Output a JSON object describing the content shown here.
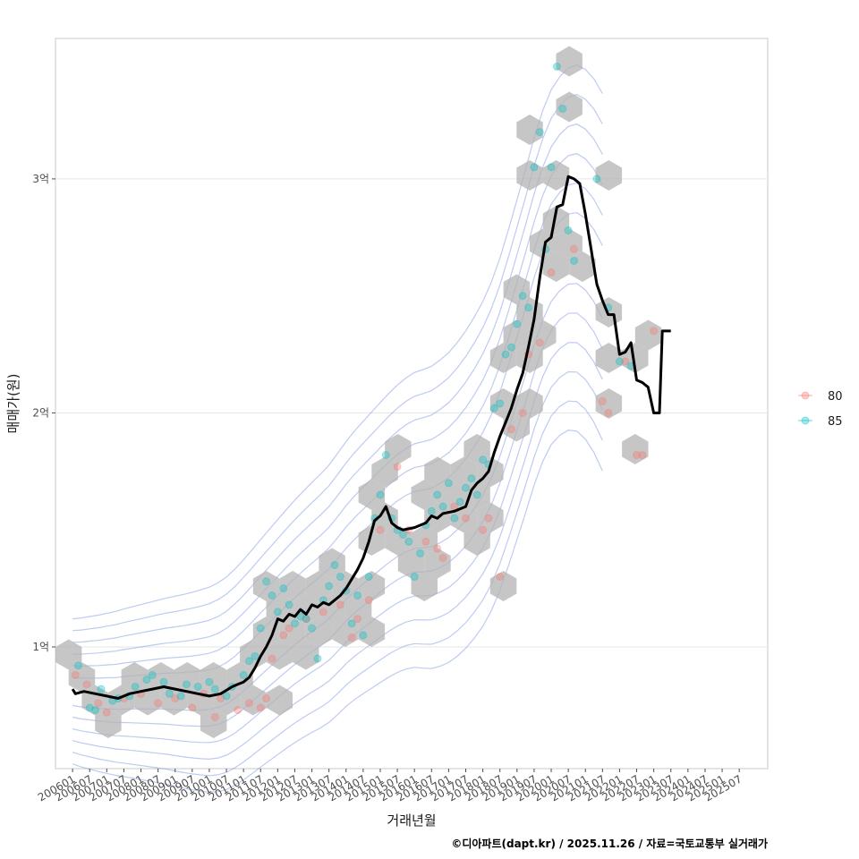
{
  "chart_data": {
    "type": "scatter",
    "title": "",
    "xlabel": "거래년월",
    "ylabel": "매매가(원)",
    "caption": "©디아파트(dapt.kr) / 2025.11.26 / 자료=국토교통부 실거래가",
    "x_start": "200601",
    "x_end": "202512",
    "xlim_months": [
      -6,
      244
    ],
    "ylim": [
      0.48,
      3.6
    ],
    "y_ticks": [
      {
        "value": 1,
        "label": "1억"
      },
      {
        "value": 2,
        "label": "2억"
      },
      {
        "value": 3,
        "label": "3억"
      }
    ],
    "x_ticks": [
      "200601",
      "200607",
      "200701",
      "200707",
      "200801",
      "200807",
      "200901",
      "200907",
      "201001",
      "201007",
      "201101",
      "201107",
      "201201",
      "201207",
      "201301",
      "201307",
      "201401",
      "201407",
      "201501",
      "201507",
      "201601",
      "201607",
      "201701",
      "201707",
      "201801",
      "201807",
      "201901",
      "201907",
      "202001",
      "202007",
      "202101",
      "202107",
      "202201",
      "202207",
      "202301",
      "202307",
      "202401",
      "202407",
      "202501",
      "202507"
    ],
    "legend": {
      "title": "",
      "position": "right",
      "entries": [
        {
          "name": "80",
          "color": "#F8766D"
        },
        {
          "name": "85",
          "color": "#00BFC4"
        }
      ]
    },
    "trend_line": {
      "name": "moving-average",
      "color": "#000000",
      "points": [
        [
          0,
          0.82
        ],
        [
          1,
          0.8
        ],
        [
          4,
          0.81
        ],
        [
          8,
          0.8
        ],
        [
          12,
          0.79
        ],
        [
          16,
          0.78
        ],
        [
          20,
          0.8
        ],
        [
          24,
          0.81
        ],
        [
          28,
          0.82
        ],
        [
          32,
          0.83
        ],
        [
          36,
          0.82
        ],
        [
          40,
          0.81
        ],
        [
          44,
          0.8
        ],
        [
          48,
          0.79
        ],
        [
          52,
          0.8
        ],
        [
          56,
          0.83
        ],
        [
          58,
          0.84
        ],
        [
          60,
          0.85
        ],
        [
          62,
          0.87
        ],
        [
          64,
          0.91
        ],
        [
          66,
          0.96
        ],
        [
          68,
          1.0
        ],
        [
          70,
          1.05
        ],
        [
          72,
          1.12
        ],
        [
          74,
          1.11
        ],
        [
          76,
          1.14
        ],
        [
          78,
          1.13
        ],
        [
          80,
          1.16
        ],
        [
          82,
          1.14
        ],
        [
          84,
          1.18
        ],
        [
          86,
          1.17
        ],
        [
          88,
          1.19
        ],
        [
          90,
          1.18
        ],
        [
          92,
          1.2
        ],
        [
          94,
          1.22
        ],
        [
          96,
          1.25
        ],
        [
          98,
          1.29
        ],
        [
          100,
          1.33
        ],
        [
          102,
          1.38
        ],
        [
          104,
          1.45
        ],
        [
          106,
          1.54
        ],
        [
          108,
          1.56
        ],
        [
          110,
          1.6
        ],
        [
          112,
          1.53
        ],
        [
          114,
          1.51
        ],
        [
          116,
          1.5
        ],
        [
          120,
          1.51
        ],
        [
          124,
          1.53
        ],
        [
          126,
          1.56
        ],
        [
          128,
          1.55
        ],
        [
          130,
          1.57
        ],
        [
          134,
          1.58
        ],
        [
          138,
          1.6
        ],
        [
          140,
          1.67
        ],
        [
          142,
          1.7
        ],
        [
          144,
          1.72
        ],
        [
          146,
          1.75
        ],
        [
          148,
          1.83
        ],
        [
          150,
          1.9
        ],
        [
          152,
          1.96
        ],
        [
          154,
          2.02
        ],
        [
          156,
          2.1
        ],
        [
          158,
          2.17
        ],
        [
          160,
          2.28
        ],
        [
          162,
          2.4
        ],
        [
          164,
          2.58
        ],
        [
          166,
          2.73
        ],
        [
          168,
          2.75
        ],
        [
          170,
          2.88
        ],
        [
          172,
          2.89
        ],
        [
          174,
          3.01
        ],
        [
          176,
          3.0
        ],
        [
          178,
          2.98
        ],
        [
          180,
          2.85
        ],
        [
          182,
          2.7
        ],
        [
          184,
          2.55
        ],
        [
          186,
          2.48
        ],
        [
          188,
          2.42
        ],
        [
          190,
          2.42
        ],
        [
          192,
          2.25
        ],
        [
          194,
          2.26
        ],
        [
          196,
          2.3
        ],
        [
          198,
          2.14
        ],
        [
          200,
          2.13
        ],
        [
          202,
          2.11
        ],
        [
          204,
          2.0
        ],
        [
          206,
          2.0
        ],
        [
          207,
          2.35
        ],
        [
          210,
          2.35
        ]
      ]
    },
    "series": [
      {
        "name": "80",
        "points": [
          [
            1,
            0.88
          ],
          [
            5,
            0.84
          ],
          [
            9,
            0.76
          ],
          [
            12,
            0.72
          ],
          [
            18,
            0.78
          ],
          [
            24,
            0.8
          ],
          [
            30,
            0.76
          ],
          [
            36,
            0.78
          ],
          [
            42,
            0.74
          ],
          [
            46,
            0.8
          ],
          [
            50,
            0.7
          ],
          [
            52,
            0.78
          ],
          [
            58,
            0.73
          ],
          [
            62,
            0.76
          ],
          [
            66,
            0.74
          ],
          [
            68,
            0.78
          ],
          [
            70,
            0.95
          ],
          [
            74,
            1.05
          ],
          [
            76,
            1.08
          ],
          [
            82,
            1.12
          ],
          [
            88,
            1.15
          ],
          [
            94,
            1.18
          ],
          [
            98,
            1.04
          ],
          [
            100,
            1.12
          ],
          [
            104,
            1.2
          ],
          [
            108,
            1.5
          ],
          [
            114,
            1.77
          ],
          [
            118,
            1.5
          ],
          [
            124,
            1.45
          ],
          [
            128,
            1.42
          ],
          [
            130,
            1.38
          ],
          [
            134,
            1.6
          ],
          [
            138,
            1.55
          ],
          [
            144,
            1.5
          ],
          [
            146,
            1.55
          ],
          [
            150,
            1.3
          ],
          [
            154,
            1.93
          ],
          [
            158,
            2.0
          ],
          [
            160,
            2.25
          ],
          [
            164,
            2.3
          ],
          [
            168,
            2.6
          ],
          [
            176,
            2.7
          ],
          [
            186,
            2.05
          ],
          [
            188,
            2.0
          ],
          [
            194,
            2.22
          ],
          [
            198,
            1.82
          ],
          [
            200,
            1.82
          ],
          [
            204,
            2.35
          ]
        ]
      },
      {
        "name": "85",
        "points": [
          [
            2,
            0.92
          ],
          [
            6,
            0.74
          ],
          [
            8,
            0.73
          ],
          [
            10,
            0.82
          ],
          [
            14,
            0.77
          ],
          [
            16,
            0.78
          ],
          [
            20,
            0.79
          ],
          [
            22,
            0.83
          ],
          [
            26,
            0.86
          ],
          [
            28,
            0.88
          ],
          [
            32,
            0.85
          ],
          [
            34,
            0.8
          ],
          [
            38,
            0.79
          ],
          [
            40,
            0.84
          ],
          [
            44,
            0.83
          ],
          [
            48,
            0.85
          ],
          [
            50,
            0.82
          ],
          [
            54,
            0.79
          ],
          [
            56,
            0.83
          ],
          [
            60,
            0.88
          ],
          [
            62,
            0.94
          ],
          [
            64,
            0.96
          ],
          [
            66,
            1.08
          ],
          [
            68,
            1.28
          ],
          [
            70,
            1.22
          ],
          [
            72,
            1.15
          ],
          [
            74,
            1.25
          ],
          [
            76,
            1.18
          ],
          [
            78,
            1.1
          ],
          [
            80,
            1.13
          ],
          [
            82,
            1.12
          ],
          [
            84,
            1.08
          ],
          [
            86,
            0.95
          ],
          [
            88,
            1.2
          ],
          [
            90,
            1.26
          ],
          [
            92,
            1.35
          ],
          [
            94,
            1.3
          ],
          [
            96,
            1.24
          ],
          [
            98,
            1.1
          ],
          [
            100,
            1.22
          ],
          [
            102,
            1.05
          ],
          [
            104,
            1.3
          ],
          [
            106,
            1.55
          ],
          [
            108,
            1.65
          ],
          [
            110,
            1.82
          ],
          [
            112,
            1.55
          ],
          [
            114,
            1.5
          ],
          [
            116,
            1.48
          ],
          [
            118,
            1.45
          ],
          [
            120,
            1.3
          ],
          [
            122,
            1.4
          ],
          [
            124,
            1.52
          ],
          [
            126,
            1.58
          ],
          [
            128,
            1.65
          ],
          [
            130,
            1.6
          ],
          [
            132,
            1.7
          ],
          [
            134,
            1.55
          ],
          [
            136,
            1.62
          ],
          [
            138,
            1.68
          ],
          [
            140,
            1.72
          ],
          [
            142,
            1.65
          ],
          [
            144,
            1.8
          ],
          [
            146,
            1.78
          ],
          [
            148,
            2.02
          ],
          [
            150,
            2.04
          ],
          [
            152,
            2.25
          ],
          [
            154,
            2.28
          ],
          [
            156,
            2.38
          ],
          [
            158,
            2.5
          ],
          [
            160,
            2.45
          ],
          [
            162,
            3.05
          ],
          [
            164,
            3.2
          ],
          [
            166,
            2.7
          ],
          [
            168,
            3.05
          ],
          [
            170,
            3.48
          ],
          [
            172,
            3.3
          ],
          [
            174,
            2.78
          ],
          [
            176,
            2.65
          ],
          [
            184,
            3.0
          ],
          [
            188,
            2.45
          ],
          [
            192,
            2.22
          ],
          [
            196,
            2.2
          ]
        ]
      }
    ],
    "hexbins_present": true,
    "density_contours_present": true,
    "grid": true
  }
}
